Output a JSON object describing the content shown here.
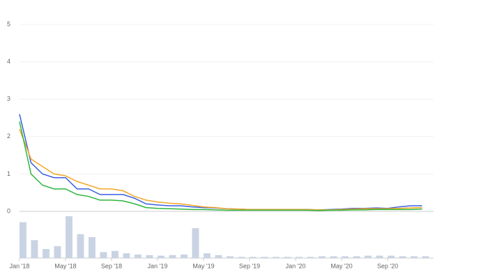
{
  "chart_data": {
    "type": "line",
    "x": [
      "2018-01",
      "2018-02",
      "2018-03",
      "2018-04",
      "2018-05",
      "2018-06",
      "2018-07",
      "2018-08",
      "2018-09",
      "2018-10",
      "2018-11",
      "2018-12",
      "2019-01",
      "2019-02",
      "2019-03",
      "2019-04",
      "2019-05",
      "2019-06",
      "2019-07",
      "2019-08",
      "2019-09",
      "2019-10",
      "2019-11",
      "2019-12",
      "2020-01",
      "2020-02",
      "2020-03",
      "2020-04",
      "2020-05",
      "2020-06",
      "2020-07",
      "2020-08",
      "2020-09",
      "2020-10",
      "2020-11",
      "2020-12"
    ],
    "series": [
      {
        "color": "#3a5fe0",
        "values": [
          2.6,
          1.3,
          1.0,
          0.9,
          0.9,
          0.6,
          0.6,
          0.45,
          0.45,
          0.45,
          0.35,
          0.2,
          0.17,
          0.15,
          0.15,
          0.12,
          0.1,
          0.09,
          0.07,
          0.06,
          0.05,
          0.05,
          0.05,
          0.05,
          0.05,
          0.05,
          0.04,
          0.05,
          0.06,
          0.08,
          0.08,
          0.09,
          0.08,
          0.12,
          0.15,
          0.15
        ]
      },
      {
        "color": "#f5a623",
        "values": [
          2.2,
          1.4,
          1.2,
          1.0,
          0.95,
          0.8,
          0.7,
          0.6,
          0.6,
          0.55,
          0.4,
          0.3,
          0.25,
          0.22,
          0.2,
          0.16,
          0.12,
          0.1,
          0.07,
          0.06,
          0.05,
          0.05,
          0.05,
          0.05,
          0.05,
          0.05,
          0.04,
          0.04,
          0.05,
          0.06,
          0.07,
          0.07,
          0.07,
          0.08,
          0.09,
          0.1
        ]
      },
      {
        "color": "#2db53b",
        "values": [
          2.4,
          1.0,
          0.7,
          0.6,
          0.6,
          0.45,
          0.4,
          0.3,
          0.3,
          0.28,
          0.2,
          0.1,
          0.08,
          0.07,
          0.06,
          0.05,
          0.05,
          0.04,
          0.03,
          0.03,
          0.03,
          0.03,
          0.03,
          0.03,
          0.03,
          0.03,
          0.02,
          0.03,
          0.03,
          0.04,
          0.04,
          0.05,
          0.05,
          0.05,
          0.05,
          0.06
        ]
      }
    ],
    "volume": {
      "color": "#c9d3e3",
      "values": [
        60,
        30,
        15,
        20,
        70,
        40,
        35,
        10,
        12,
        8,
        6,
        5,
        4,
        5,
        6,
        50,
        8,
        5,
        3,
        2,
        2,
        2,
        2,
        2,
        2,
        2,
        3,
        3,
        3,
        3,
        4,
        4,
        4,
        3,
        3,
        3
      ]
    },
    "xlim": [
      "2018-01",
      "2021-01"
    ],
    "xticks": [
      {
        "value": "2018-01",
        "label": "Jan '18"
      },
      {
        "value": "2018-05",
        "label": "May '18"
      },
      {
        "value": "2018-09",
        "label": "Sep '18"
      },
      {
        "value": "2019-01",
        "label": "Jan '19"
      },
      {
        "value": "2019-05",
        "label": "May '19"
      },
      {
        "value": "2019-09",
        "label": "Sep '19"
      },
      {
        "value": "2020-01",
        "label": "Jan '20"
      },
      {
        "value": "2020-05",
        "label": "May '20"
      },
      {
        "value": "2020-09",
        "label": "Sep '20"
      }
    ],
    "ylim": [
      0,
      5
    ],
    "yticks": [
      0,
      1,
      2,
      3,
      4,
      5
    ],
    "grid": true
  }
}
